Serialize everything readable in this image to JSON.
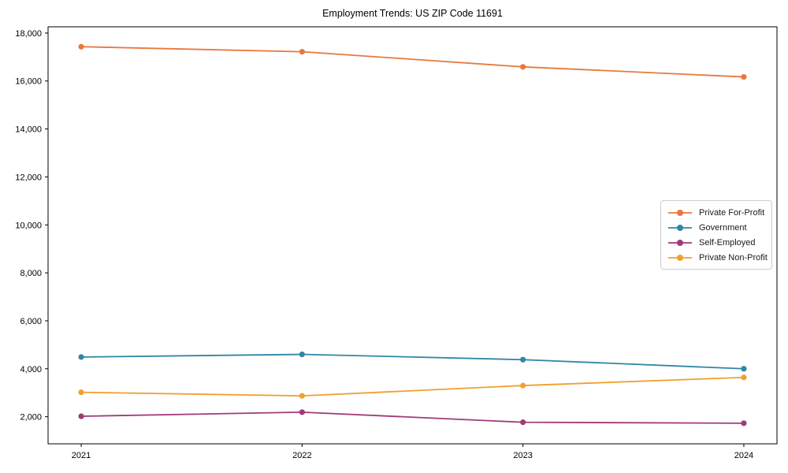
{
  "figure": {
    "background": "#ffffff",
    "axis_color": "#000000",
    "text_color": "#000000"
  },
  "chart_data": {
    "type": "line",
    "title": "Employment Trends: US ZIP Code 11691",
    "xlabel": "",
    "ylabel": "",
    "x": [
      2021,
      2022,
      2023,
      2024
    ],
    "x_ticks": [
      {
        "value": 2021,
        "label": "2021"
      },
      {
        "value": 2022,
        "label": "2022"
      },
      {
        "value": 2023,
        "label": "2023"
      },
      {
        "value": 2024,
        "label": "2024"
      }
    ],
    "y_ticks": [
      {
        "value": 2000,
        "label": "2,000"
      },
      {
        "value": 4000,
        "label": "4,000"
      },
      {
        "value": 6000,
        "label": "6,000"
      },
      {
        "value": 8000,
        "label": "8,000"
      },
      {
        "value": 10000,
        "label": "10,000"
      },
      {
        "value": 12000,
        "label": "12,000"
      },
      {
        "value": 14000,
        "label": "14,000"
      },
      {
        "value": 16000,
        "label": "16,000"
      },
      {
        "value": 18000,
        "label": "18,000"
      }
    ],
    "xlim": [
      2020.85,
      2024.15
    ],
    "ylim": [
      870,
      18260
    ],
    "grid": false,
    "legend_position": "center-right",
    "marker": "circle",
    "series": [
      {
        "name": "Private For-Profit",
        "color": "#e8793d",
        "values": [
          17430,
          17220,
          16590,
          16170
        ]
      },
      {
        "name": "Government",
        "color": "#2f87a6",
        "values": [
          4490,
          4600,
          4380,
          4000
        ]
      },
      {
        "name": "Self-Employed",
        "color": "#a13a7a",
        "values": [
          2020,
          2190,
          1770,
          1730
        ]
      },
      {
        "name": "Private Non-Profit",
        "color": "#f0a02e",
        "values": [
          3020,
          2870,
          3300,
          3640
        ]
      }
    ]
  }
}
